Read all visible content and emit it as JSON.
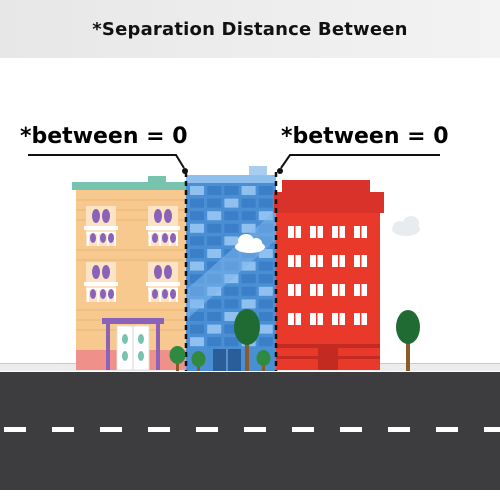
{
  "header": {
    "title": "*Separation Distance Between"
  },
  "labels": {
    "left": "*between = 0",
    "right": "*between = 0"
  },
  "colors": {
    "header_bg": "#ececec",
    "road": "#3d3d3f",
    "lane_marking": "#ffffff",
    "apartment_building": "#f8c98f",
    "office_building": "#4a8fd4",
    "red_building": "#e8392a",
    "tree": "#1f6b33",
    "tree_trunk": "#8a5a2b",
    "separation_line": "#111111"
  },
  "icons": [
    "apartment-building-icon",
    "glass-office-tower-icon",
    "red-building-icon",
    "tree-icon",
    "cloud-icon"
  ]
}
